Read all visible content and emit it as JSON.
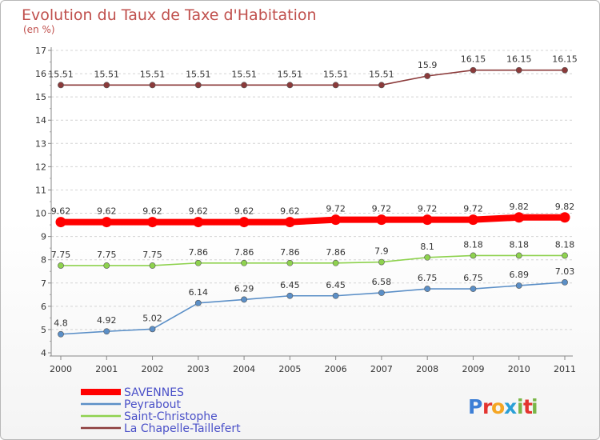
{
  "chart_data": {
    "type": "line",
    "title": "Evolution du Taux de Taxe d'Habitation",
    "subtitle": "(en %)",
    "categories": [
      "2000",
      "2001",
      "2002",
      "2003",
      "2004",
      "2005",
      "2006",
      "2007",
      "2008",
      "2009",
      "2010",
      "2011"
    ],
    "ylim": [
      4,
      17
    ],
    "yticks": [
      "4",
      "5",
      "6",
      "7",
      "8",
      "9",
      "10",
      "11",
      "12",
      "13",
      "14",
      "15",
      "16",
      "17"
    ],
    "grid": "horizontal dashed",
    "legend_position": "bottom-left",
    "series": [
      {
        "name": "La Chapelle-Taillefert",
        "color": "#8b3a3a",
        "values": [
          15.51,
          15.51,
          15.51,
          15.51,
          15.51,
          15.51,
          15.51,
          15.51,
          15.9,
          16.15,
          16.15,
          16.15
        ],
        "labels": [
          "15.51",
          "15.51",
          "15.51",
          "15.51",
          "15.51",
          "15.51",
          "15.51",
          "15.51",
          "15.9",
          "16.15",
          "16.15",
          "16.15"
        ]
      },
      {
        "name": "SAVENNES",
        "color": "#ff0000",
        "values": [
          9.62,
          9.62,
          9.62,
          9.62,
          9.62,
          9.62,
          9.72,
          9.72,
          9.72,
          9.72,
          9.82,
          9.82
        ],
        "labels": [
          "9.62",
          "9.62",
          "9.62",
          "9.62",
          "9.62",
          "9.62",
          "9.72",
          "9.72",
          "9.72",
          "9.72",
          "9.82",
          "9.82"
        ]
      },
      {
        "name": "Saint-Christophe",
        "color": "#8ed24e",
        "values": [
          7.75,
          7.75,
          7.75,
          7.86,
          7.86,
          7.86,
          7.86,
          7.9,
          8.1,
          8.18,
          8.18,
          8.18
        ],
        "labels": [
          "7.75",
          "7.75",
          "7.75",
          "7.86",
          "7.86",
          "7.86",
          "7.86",
          "7.9",
          "8.1",
          "8.18",
          "8.18",
          "8.18"
        ]
      },
      {
        "name": "Peyrabout",
        "color": "#5b8fc7",
        "values": [
          4.8,
          4.92,
          5.02,
          6.14,
          6.29,
          6.45,
          6.45,
          6.58,
          6.75,
          6.75,
          6.89,
          7.03
        ],
        "labels": [
          "4.8",
          "4.92",
          "5.02",
          "6.14",
          "6.29",
          "6.45",
          "6.45",
          "6.58",
          "6.75",
          "6.75",
          "6.89",
          "7.03"
        ]
      }
    ],
    "legend": [
      "SAVENNES",
      "Peyrabout",
      "Saint-Christophe",
      "La Chapelle-Taillefert"
    ],
    "legend_colors": [
      "#ff0000",
      "#5b8fc7",
      "#8ed24e",
      "#8b3a3a"
    ]
  },
  "logo": {
    "letters": [
      "P",
      "r",
      "o",
      "x",
      "i",
      "t",
      "i"
    ],
    "colors": [
      "#3d7fd6",
      "#e3342f",
      "#f5a623",
      "#2a9fd6",
      "#7ab648",
      "#e3342f",
      "#7ab648"
    ]
  }
}
